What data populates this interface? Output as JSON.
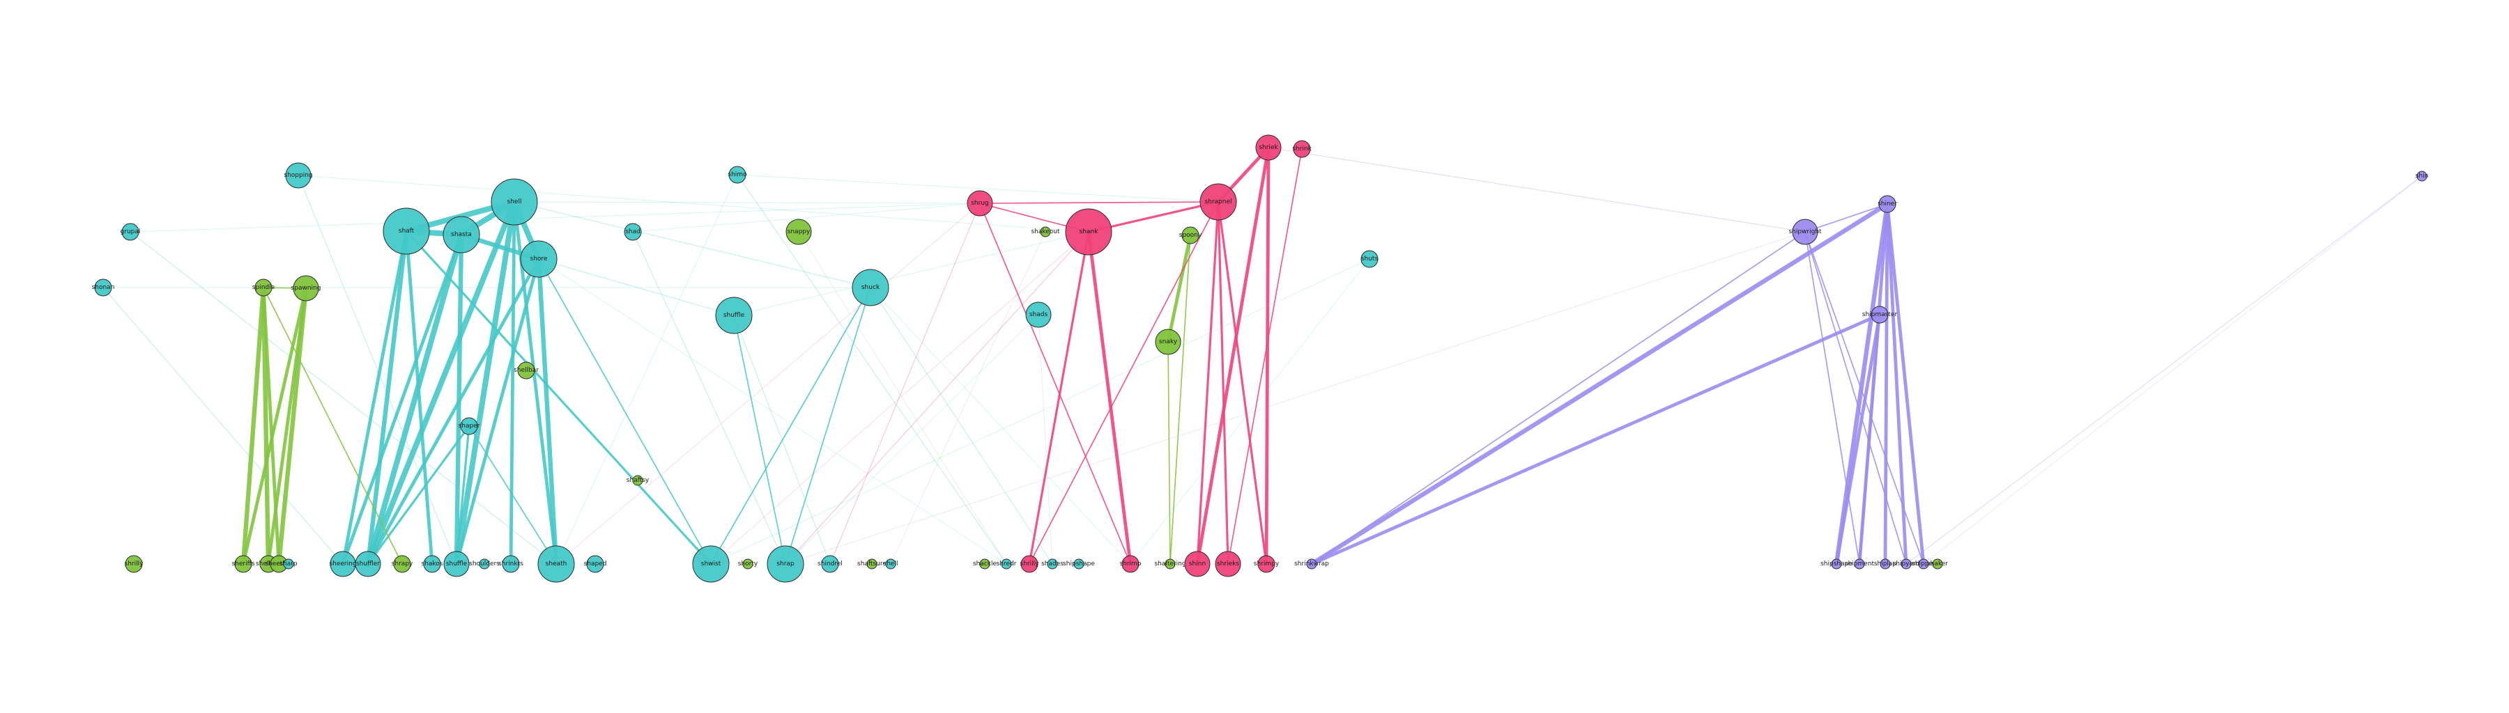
{
  "colors": {
    "teal": "#45c8c8",
    "green": "#82c43c",
    "pink": "#f0427a",
    "purple": "#9d8bf0",
    "background": "#ffffff"
  },
  "nodes": [
    {
      "id": "t_top_left",
      "label": "shopping",
      "group": "teal",
      "size": "m"
    },
    {
      "id": "t_l1",
      "label": "grupal",
      "group": "teal",
      "size": "s"
    },
    {
      "id": "t_l2",
      "label": "shonan",
      "group": "teal",
      "size": "s"
    },
    {
      "id": "t_big1",
      "label": "shell",
      "group": "teal",
      "size": "xl"
    },
    {
      "id": "t_big2",
      "label": "shaft",
      "group": "teal",
      "size": "xl"
    },
    {
      "id": "t_big3",
      "label": "shasta",
      "group": "teal",
      "size": "l"
    },
    {
      "id": "t_big4",
      "label": "shore",
      "group": "teal",
      "size": "l"
    },
    {
      "id": "t_mid1",
      "label": "shimo",
      "group": "teal",
      "size": "s"
    },
    {
      "id": "t_mid2",
      "label": "shad",
      "group": "teal",
      "size": "s"
    },
    {
      "id": "t_mid3",
      "label": "shuffle",
      "group": "teal",
      "size": "l"
    },
    {
      "id": "t_mid4",
      "label": "shuck",
      "group": "teal",
      "size": "l"
    },
    {
      "id": "t_mid5",
      "label": "shaper",
      "group": "teal",
      "size": "s"
    },
    {
      "id": "t_mid6",
      "label": "shads",
      "group": "teal",
      "size": "m"
    },
    {
      "id": "t_mid7",
      "label": "shuts",
      "group": "teal",
      "size": "s"
    },
    {
      "id": "g_1",
      "label": "spindle",
      "group": "green",
      "size": "s"
    },
    {
      "id": "g_2",
      "label": "spawning",
      "group": "green",
      "size": "m"
    },
    {
      "id": "g_3",
      "label": "snappy",
      "group": "green",
      "size": "m"
    },
    {
      "id": "g_4",
      "label": "shellbar",
      "group": "green",
      "size": "s"
    },
    {
      "id": "g_5",
      "label": "shaftsy",
      "group": "green",
      "size": "xs"
    },
    {
      "id": "g_6",
      "label": "shakeout",
      "group": "green",
      "size": "xs"
    },
    {
      "id": "g_7",
      "label": "spoony",
      "group": "green",
      "size": "s"
    },
    {
      "id": "g_8",
      "label": "snaky",
      "group": "green",
      "size": "m"
    },
    {
      "id": "p_1",
      "label": "shrug",
      "group": "pink",
      "size": "m"
    },
    {
      "id": "p_2",
      "label": "shank",
      "group": "pink",
      "size": "xl"
    },
    {
      "id": "p_3",
      "label": "shrapnel",
      "group": "pink",
      "size": "l"
    },
    {
      "id": "p_4",
      "label": "shriek",
      "group": "pink",
      "size": "m"
    },
    {
      "id": "p_5",
      "label": "shrink",
      "group": "pink",
      "size": "s"
    },
    {
      "id": "u_1",
      "label": "shipwright",
      "group": "purple",
      "size": "m"
    },
    {
      "id": "u_2",
      "label": "shiner",
      "group": "purple",
      "size": "s"
    },
    {
      "id": "u_3",
      "label": "shipmaster",
      "group": "purple",
      "size": "s"
    },
    {
      "id": "u_4",
      "label": "shin",
      "group": "purple",
      "size": "xs"
    },
    {
      "id": "b1",
      "label": "shrilly",
      "group": "green",
      "size": "s"
    },
    {
      "id": "b2",
      "label": "sheriffs",
      "group": "green",
      "size": "s"
    },
    {
      "id": "b3",
      "label": "shellacs",
      "group": "green",
      "size": "s"
    },
    {
      "id": "b4",
      "label": "sheetfed",
      "group": "green",
      "size": "s"
    },
    {
      "id": "b5",
      "label": "sharp",
      "group": "teal",
      "size": "xs"
    },
    {
      "id": "b6",
      "label": "sheering",
      "group": "teal",
      "size": "m"
    },
    {
      "id": "b7",
      "label": "shuffler",
      "group": "teal",
      "size": "m"
    },
    {
      "id": "b8",
      "label": "shrapy",
      "group": "green",
      "size": "s"
    },
    {
      "id": "b9",
      "label": "shakos",
      "group": "teal",
      "size": "s"
    },
    {
      "id": "b10",
      "label": "shuffle",
      "group": "teal",
      "size": "m"
    },
    {
      "id": "b11",
      "label": "shoulders",
      "group": "teal",
      "size": "xs"
    },
    {
      "id": "b12",
      "label": "shrinkrs",
      "group": "teal",
      "size": "s"
    },
    {
      "id": "b13",
      "label": "sheath",
      "group": "teal",
      "size": "l"
    },
    {
      "id": "b14",
      "label": "shaped",
      "group": "teal",
      "size": "s"
    },
    {
      "id": "b15",
      "label": "shwist",
      "group": "teal",
      "size": "l"
    },
    {
      "id": "b16",
      "label": "shorty",
      "group": "green",
      "size": "xs"
    },
    {
      "id": "b17",
      "label": "shrap",
      "group": "teal",
      "size": "l"
    },
    {
      "id": "b18",
      "label": "shindrel",
      "group": "teal",
      "size": "s"
    },
    {
      "id": "b19",
      "label": "shaftsure",
      "group": "green",
      "size": "xs"
    },
    {
      "id": "b20",
      "label": "shell",
      "group": "teal",
      "size": "xs"
    },
    {
      "id": "b21",
      "label": "shackle",
      "group": "green",
      "size": "xs"
    },
    {
      "id": "b22",
      "label": "shredr",
      "group": "teal",
      "size": "xs"
    },
    {
      "id": "b23",
      "label": "shrilly",
      "group": "pink",
      "size": "s"
    },
    {
      "id": "b24",
      "label": "shades",
      "group": "teal",
      "size": "xs"
    },
    {
      "id": "b25",
      "label": "shipshape",
      "group": "teal",
      "size": "xs"
    },
    {
      "id": "b26",
      "label": "shrimp",
      "group": "pink",
      "size": "s"
    },
    {
      "id": "b27",
      "label": "shaltering",
      "group": "green",
      "size": "xs"
    },
    {
      "id": "b28",
      "label": "shinn",
      "group": "pink",
      "size": "m"
    },
    {
      "id": "b29",
      "label": "shrieks",
      "group": "pink",
      "size": "m"
    },
    {
      "id": "b30",
      "label": "shrimpy",
      "group": "pink",
      "size": "s"
    },
    {
      "id": "b31",
      "label": "shrinkwrap",
      "group": "purple",
      "size": "xs"
    },
    {
      "id": "b32",
      "label": "shipshape",
      "group": "purple",
      "size": "xs"
    },
    {
      "id": "b33",
      "label": "shipment",
      "group": "purple",
      "size": "xs"
    },
    {
      "id": "b34",
      "label": "shiplap",
      "group": "purple",
      "size": "xs"
    },
    {
      "id": "b35",
      "label": "shipyard",
      "group": "purple",
      "size": "xs"
    },
    {
      "id": "b36",
      "label": "shipper",
      "group": "purple",
      "size": "xs"
    },
    {
      "id": "b37",
      "label": "shaker",
      "group": "green",
      "size": "xs"
    }
  ],
  "edges": [
    {
      "source": "t_big2",
      "target": "t_big3",
      "weight": 5
    },
    {
      "source": "t_big2",
      "target": "t_big1",
      "weight": 5
    },
    {
      "source": "t_big3",
      "target": "t_big1",
      "weight": 5
    },
    {
      "source": "t_big3",
      "target": "t_big4",
      "weight": 4
    },
    {
      "source": "t_big1",
      "target": "t_big4",
      "weight": 5
    },
    {
      "source": "t_big2",
      "target": "b7",
      "weight": 4
    },
    {
      "source": "t_big2",
      "target": "b6",
      "weight": 3
    },
    {
      "source": "t_big2",
      "target": "b9",
      "weight": 3
    },
    {
      "source": "t_big3",
      "target": "b7",
      "weight": 5
    },
    {
      "source": "t_big3",
      "target": "b10",
      "weight": 4
    },
    {
      "source": "t_big3",
      "target": "b6",
      "weight": 3
    },
    {
      "source": "t_big1",
      "target": "b10",
      "weight": 5
    },
    {
      "source": "t_big1",
      "target": "b7",
      "weight": 5
    },
    {
      "source": "t_big1",
      "target": "b12",
      "weight": 3
    },
    {
      "source": "t_big1",
      "target": "b13",
      "weight": 3
    },
    {
      "source": "t_big4",
      "target": "b13",
      "weight": 4
    },
    {
      "source": "t_big4",
      "target": "b10",
      "weight": 3
    },
    {
      "source": "t_big4",
      "target": "b7",
      "weight": 3
    },
    {
      "source": "t_mid5",
      "target": "b7",
      "weight": 2
    },
    {
      "source": "t_mid5",
      "target": "b10",
      "weight": 2
    },
    {
      "source": "t_mid5",
      "target": "b13",
      "weight": 1
    },
    {
      "source": "t_mid3",
      "target": "b17",
      "weight": 1
    },
    {
      "source": "t_big2",
      "target": "b15",
      "weight": 2
    },
    {
      "source": "t_big4",
      "target": "b15",
      "weight": 1
    },
    {
      "source": "t_mid4",
      "target": "b15",
      "weight": 1
    },
    {
      "source": "t_mid4",
      "target": "b17",
      "weight": 1
    },
    {
      "source": "g_1",
      "target": "b2",
      "weight": 4
    },
    {
      "source": "g_1",
      "target": "b3",
      "weight": 4
    },
    {
      "source": "g_1",
      "target": "b4",
      "weight": 3
    },
    {
      "source": "g_2",
      "target": "b2",
      "weight": 3
    },
    {
      "source": "g_2",
      "target": "b3",
      "weight": 3
    },
    {
      "source": "g_2",
      "target": "b4",
      "weight": 4
    },
    {
      "source": "g_1",
      "target": "g_2",
      "weight": 1
    },
    {
      "source": "g_1",
      "target": "b8",
      "weight": 1
    },
    {
      "source": "g_7",
      "target": "g_8",
      "weight": 3
    },
    {
      "source": "g_7",
      "target": "b27",
      "weight": 1
    },
    {
      "source": "g_8",
      "target": "b27",
      "weight": 1
    },
    {
      "source": "p_3",
      "target": "p_4",
      "weight": 3
    },
    {
      "source": "p_3",
      "target": "p_2",
      "weight": 2
    },
    {
      "source": "p_2",
      "target": "p_1",
      "weight": 1
    },
    {
      "source": "p_1",
      "target": "p_3",
      "weight": 1
    },
    {
      "source": "p_2",
      "target": "b26",
      "weight": 3
    },
    {
      "source": "p_2",
      "target": "b23",
      "weight": 2
    },
    {
      "source": "p_4",
      "target": "b28",
      "weight": 3
    },
    {
      "source": "p_4",
      "target": "b30",
      "weight": 3
    },
    {
      "source": "p_3",
      "target": "b28",
      "weight": 2
    },
    {
      "source": "p_3",
      "target": "b29",
      "weight": 2
    },
    {
      "source": "p_3",
      "target": "b30",
      "weight": 2
    },
    {
      "source": "p_3",
      "target": "b23",
      "weight": 1
    },
    {
      "source": "p_5",
      "target": "b29",
      "weight": 1
    },
    {
      "source": "p_1",
      "target": "b26",
      "weight": 1
    },
    {
      "source": "u_2",
      "target": "b31",
      "weight": 4
    },
    {
      "source": "u_2",
      "target": "b32",
      "weight": 4
    },
    {
      "source": "u_2",
      "target": "b33",
      "weight": 3
    },
    {
      "source": "u_2",
      "target": "b34",
      "weight": 3
    },
    {
      "source": "u_2",
      "target": "b35",
      "weight": 3
    },
    {
      "source": "u_2",
      "target": "b36",
      "weight": 3
    },
    {
      "source": "u_3",
      "target": "b31",
      "weight": 3
    },
    {
      "source": "u_3",
      "target": "b32",
      "weight": 3
    },
    {
      "source": "u_3",
      "target": "b33",
      "weight": 2
    },
    {
      "source": "u_1",
      "target": "u_2",
      "weight": 1
    },
    {
      "source": "u_1",
      "target": "b31",
      "weight": 1
    },
    {
      "source": "u_1",
      "target": "b33",
      "weight": 1
    },
    {
      "source": "u_1",
      "target": "b35",
      "weight": 1
    },
    {
      "source": "u_1",
      "target": "b36",
      "weight": 1
    },
    {
      "source": "u_1",
      "target": "p_4",
      "weight": 0.3
    },
    {
      "source": "t_mid3",
      "target": "b18",
      "weight": 0.3
    },
    {
      "source": "t_mid4",
      "target": "b15",
      "weight": 0.3
    },
    {
      "source": "t_top_left",
      "target": "b10",
      "weight": 0.3
    },
    {
      "source": "t_l1",
      "target": "b13",
      "weight": 0.3
    },
    {
      "source": "t_l2",
      "target": "b6",
      "weight": 0.3
    },
    {
      "source": "t_mid2",
      "target": "b17",
      "weight": 0.3
    },
    {
      "source": "t_mid1",
      "target": "b22",
      "weight": 0.3
    },
    {
      "source": "t_mid4",
      "target": "b24",
      "weight": 0.3
    },
    {
      "source": "p_1",
      "target": "b18",
      "weight": 0.3
    },
    {
      "source": "p_2",
      "target": "b17",
      "weight": 0.3
    },
    {
      "source": "t_big1",
      "target": "t_mid4",
      "weight": 0.4
    },
    {
      "source": "t_big4",
      "target": "t_mid3",
      "weight": 0.4
    },
    {
      "source": "u_4",
      "target": "b35",
      "weight": 0.3
    }
  ]
}
